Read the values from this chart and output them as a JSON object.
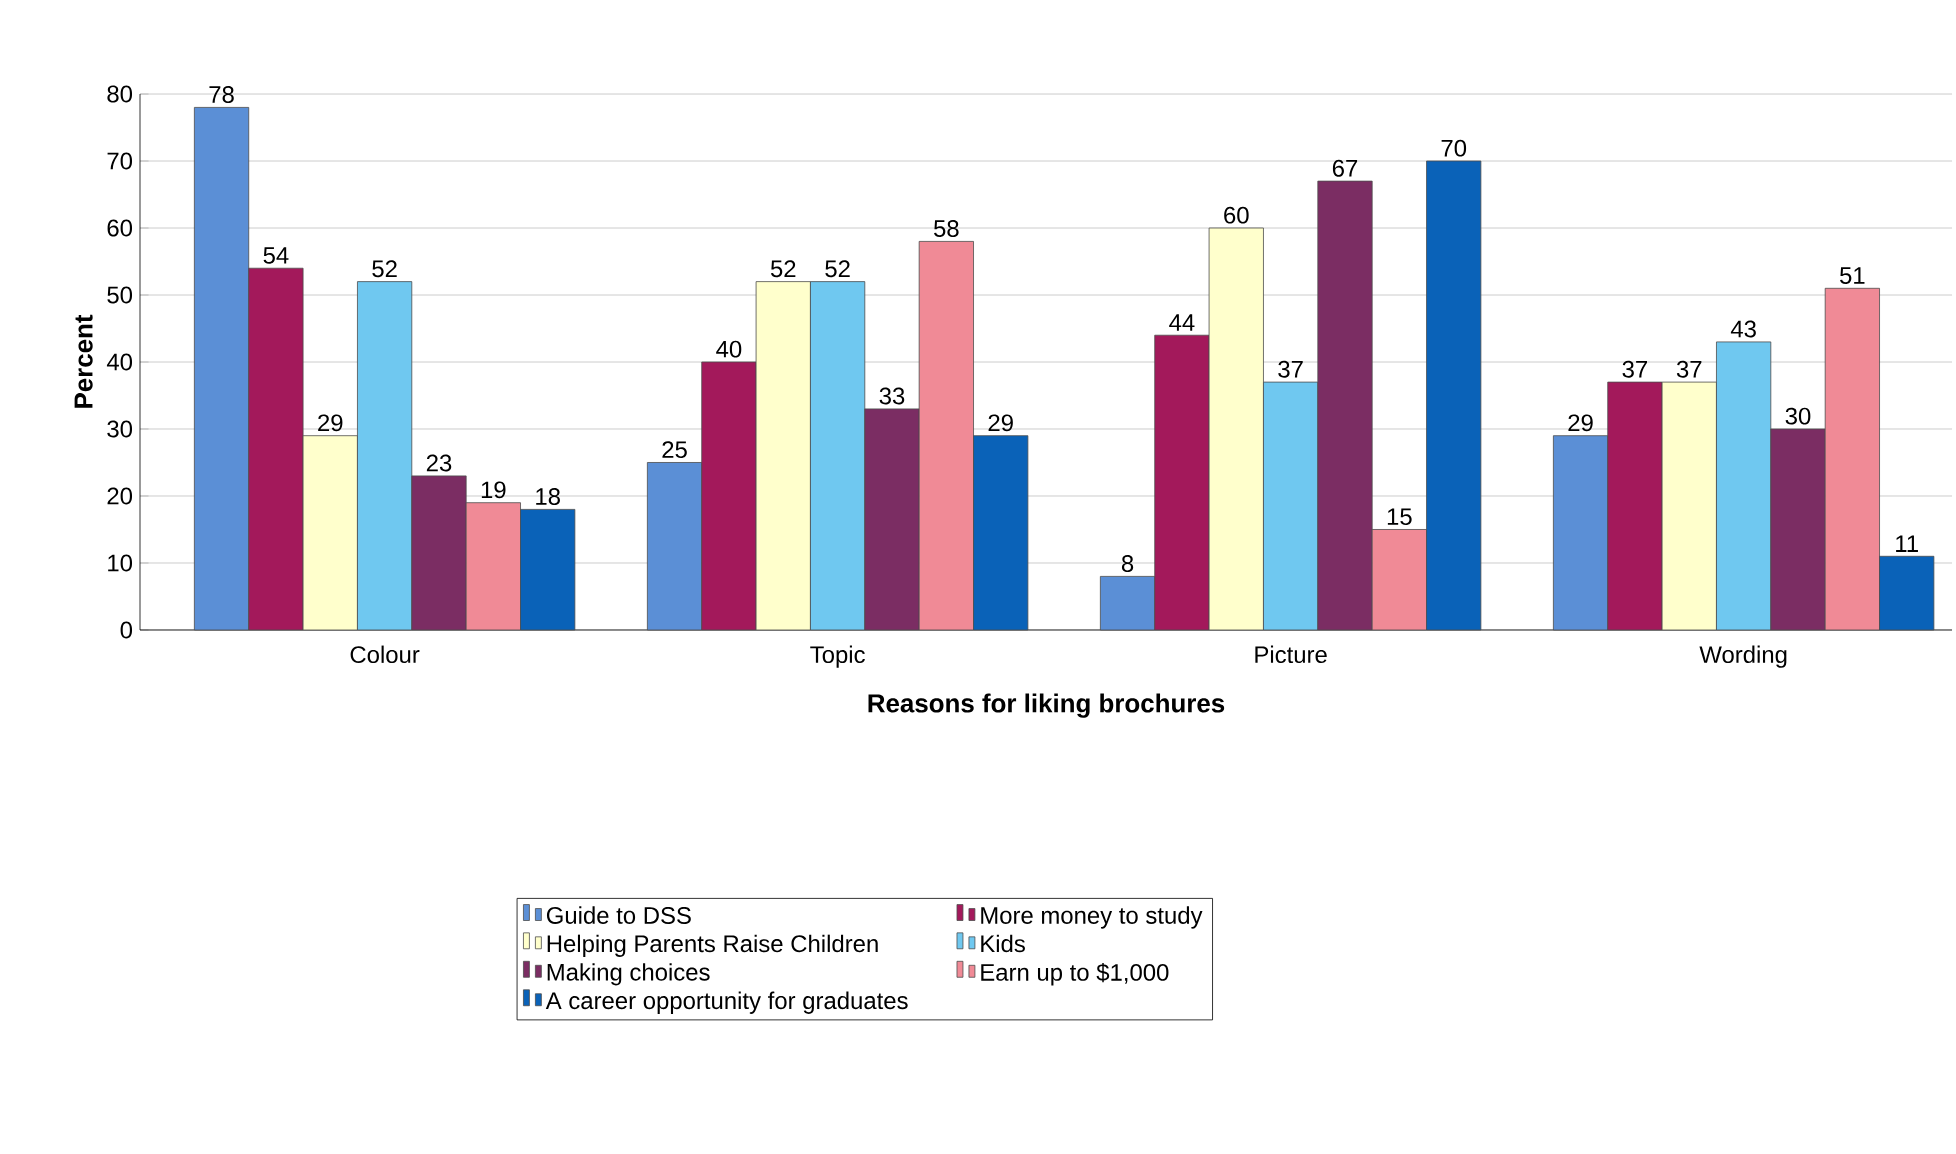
{
  "chart_data": {
    "type": "bar",
    "xlabel": "Reasons for liking brochures",
    "ylabel": "Percent",
    "categories": [
      "Colour",
      "Topic",
      "Picture",
      "Wording"
    ],
    "series": [
      {
        "name": "Guide to DSS",
        "color": "#5b8fd6",
        "values": [
          78,
          25,
          8,
          29
        ]
      },
      {
        "name": "More money to study",
        "color": "#a3195b",
        "values": [
          54,
          40,
          44,
          37
        ]
      },
      {
        "name": "Helping Parents Raise Children",
        "color": "#ffffcc",
        "values": [
          29,
          52,
          60,
          37
        ]
      },
      {
        "name": "Kids",
        "color": "#6fc8f0",
        "values": [
          52,
          52,
          37,
          43
        ]
      },
      {
        "name": "Making choices",
        "color": "#7b2d63",
        "values": [
          23,
          33,
          67,
          30
        ]
      },
      {
        "name": "Earn up to $1,000",
        "color": "#f08a96",
        "values": [
          19,
          58,
          15,
          51
        ]
      },
      {
        "name": "A career opportunity for graduates",
        "color": "#0a62b8",
        "values": [
          18,
          29,
          70,
          11
        ]
      }
    ],
    "ylim": [
      0,
      80
    ],
    "yticks": [
      0,
      10,
      20,
      30,
      40,
      50,
      60,
      70,
      80
    ],
    "grid": "y",
    "legend": "bottom",
    "data_labels": true
  }
}
